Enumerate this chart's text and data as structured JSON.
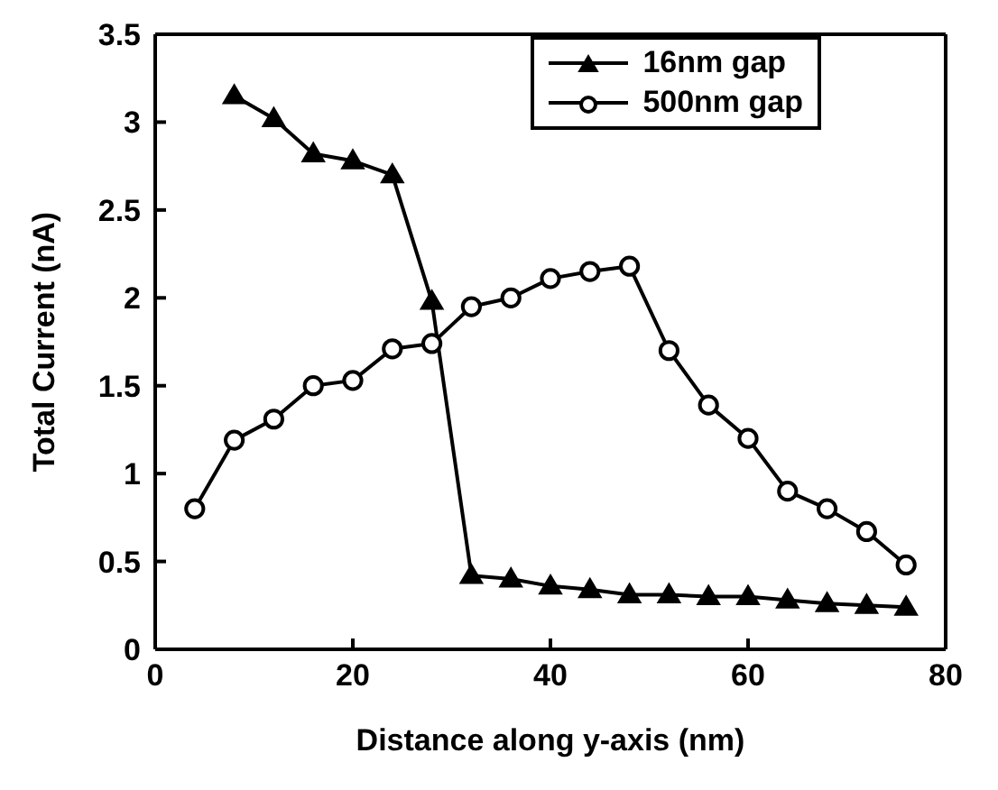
{
  "chart_data": {
    "type": "line",
    "xlabel": "Distance along y-axis (nm)",
    "ylabel": "Total Current (nA)",
    "xlim": [
      0,
      80
    ],
    "xticks": [
      0,
      20,
      40,
      60,
      80
    ],
    "ylim": [
      0,
      3.5
    ],
    "yticks": [
      0,
      0.5,
      1,
      1.5,
      2,
      2.5,
      3,
      3.5
    ],
    "grid": false,
    "legend": "top right",
    "line_style": "solid",
    "series": [
      {
        "name": "16nm gap",
        "color": "#000000",
        "marker": "triangle",
        "x": [
          8,
          12,
          16,
          20,
          24,
          28,
          32,
          36,
          40,
          44,
          48,
          52,
          56,
          60,
          64,
          68,
          72,
          76
        ],
        "values": [
          3.15,
          3.02,
          2.82,
          2.78,
          2.7,
          1.98,
          0.42,
          0.4,
          0.36,
          0.34,
          0.31,
          0.31,
          0.3,
          0.3,
          0.28,
          0.26,
          0.25,
          0.24
        ]
      },
      {
        "name": "500nm gap",
        "color": "#000000",
        "marker": "circle",
        "x": [
          4,
          8,
          12,
          16,
          20,
          24,
          28,
          32,
          36,
          40,
          44,
          48,
          52,
          56,
          60,
          64,
          68,
          72,
          76
        ],
        "values": [
          0.8,
          1.19,
          1.31,
          1.5,
          1.53,
          1.71,
          1.74,
          1.95,
          2.0,
          2.11,
          2.15,
          2.18,
          1.7,
          1.39,
          1.2,
          0.9,
          0.8,
          0.67,
          0.48
        ]
      }
    ]
  }
}
